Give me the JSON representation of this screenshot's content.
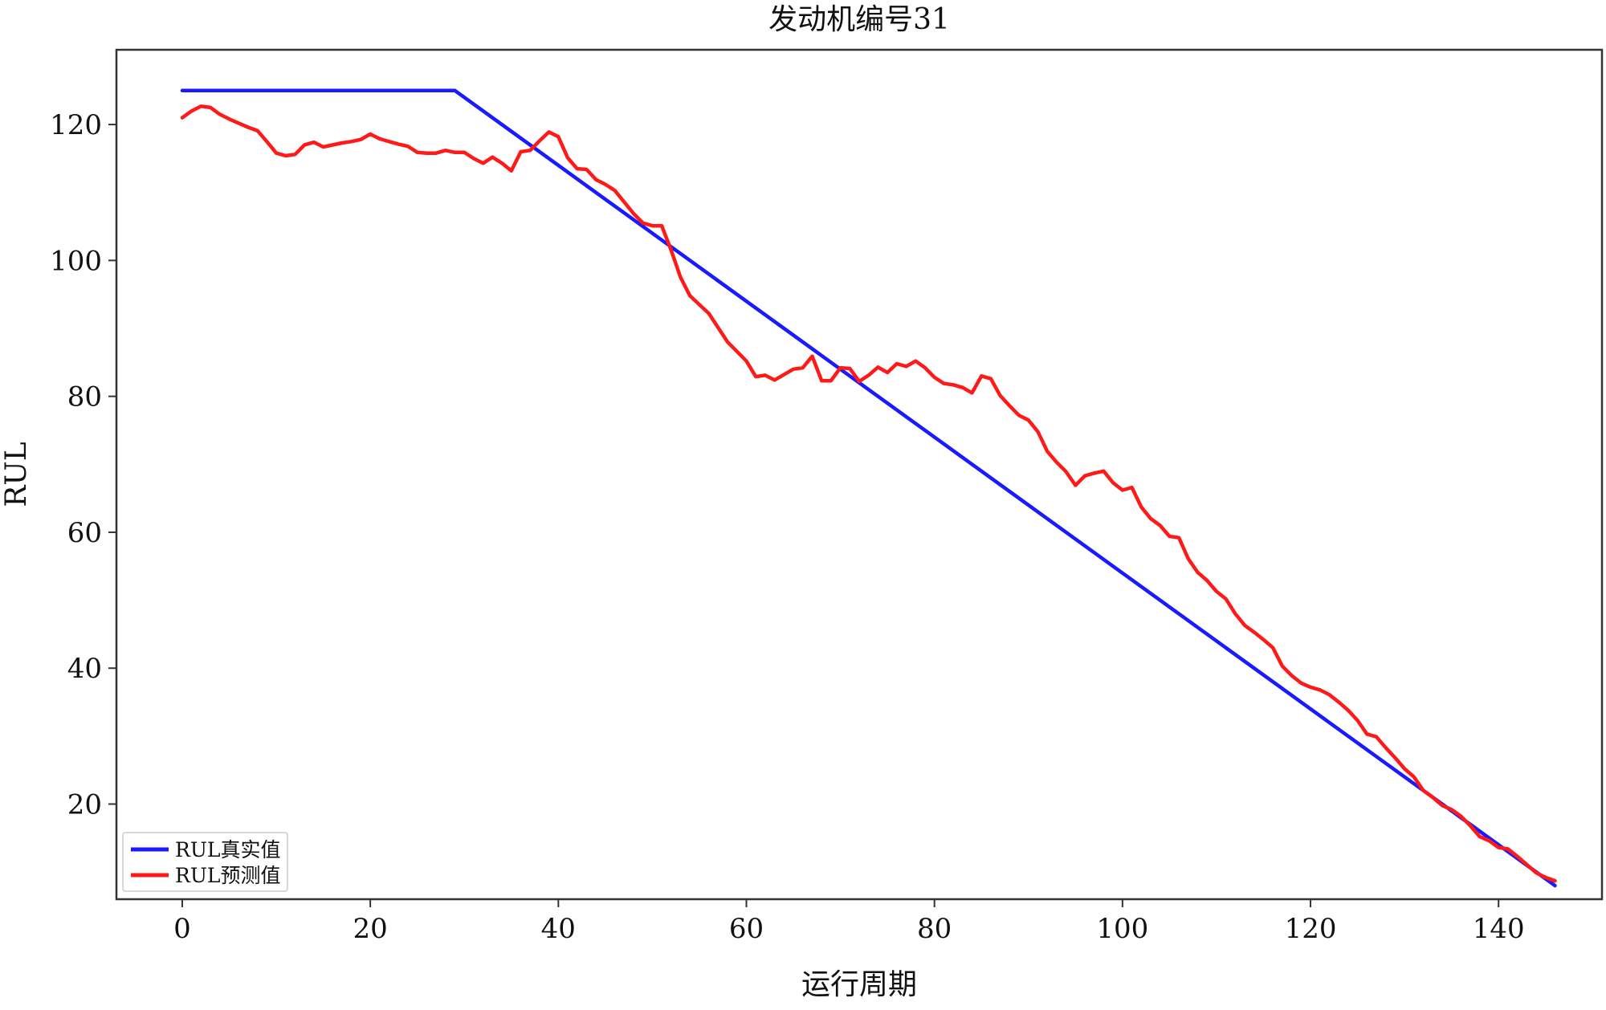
{
  "chart_data": {
    "type": "line",
    "title": "发动机编号31",
    "xlabel": "运行周期",
    "ylabel": "RUL",
    "xlim": [
      -7,
      151
    ],
    "ylim": [
      6,
      131
    ],
    "x_ticks": [
      0,
      20,
      40,
      60,
      80,
      100,
      120,
      140
    ],
    "y_ticks": [
      20,
      40,
      60,
      80,
      100,
      120
    ],
    "grid": false,
    "legend_position": "bottom-left",
    "series": [
      {
        "name": "RUL真实值",
        "color": "#1a1aff",
        "x": [
          0,
          29,
          146
        ],
        "y": [
          125,
          125,
          8
        ]
      },
      {
        "name": "RUL预测值",
        "color": "#ff1a1a",
        "x": [
          0,
          1,
          2,
          3,
          4,
          5,
          6,
          7,
          8,
          9,
          10,
          11,
          12,
          13,
          14,
          15,
          16,
          17,
          18,
          19,
          20,
          21,
          22,
          23,
          24,
          25,
          26,
          27,
          28,
          29,
          30,
          31,
          32,
          33,
          34,
          35,
          36,
          37,
          38,
          39,
          40,
          41,
          42,
          43,
          44,
          45,
          46,
          47,
          48,
          49,
          50,
          51,
          52,
          53,
          54,
          55,
          56,
          57,
          58,
          59,
          60,
          61,
          62,
          63,
          64,
          65,
          66,
          67,
          68,
          69,
          70,
          71,
          72,
          73,
          74,
          75,
          76,
          77,
          78,
          79,
          80,
          81,
          82,
          83,
          84,
          85,
          86,
          87,
          88,
          89,
          90,
          91,
          92,
          93,
          94,
          95,
          96,
          97,
          98,
          99,
          100,
          101,
          102,
          103,
          104,
          105,
          106,
          107,
          108,
          109,
          110,
          111,
          112,
          113,
          114,
          115,
          116,
          117,
          118,
          119,
          120,
          121,
          122,
          123,
          124,
          125,
          126,
          127,
          128,
          129,
          130,
          131,
          132,
          133,
          134,
          135,
          136,
          137,
          138,
          139,
          140,
          141,
          142,
          143,
          144,
          145,
          146
        ],
        "y": [
          121,
          122,
          122.7,
          122.5,
          121.5,
          120.8,
          120.2,
          119.6,
          119.1,
          117.5,
          115.8,
          115.4,
          115.6,
          117.0,
          117.4,
          116.7,
          117.0,
          117.3,
          117.5,
          117.8,
          118.6,
          117.9,
          117.5,
          117.1,
          116.8,
          115.9,
          115.8,
          115.8,
          116.2,
          115.9,
          115.9,
          115.0,
          114.3,
          115.2,
          114.3,
          113.2,
          116.0,
          116.2,
          117.6,
          118.9,
          118.2,
          115.1,
          113.5,
          113.4,
          111.9,
          111.2,
          110.3,
          108.6,
          106.9,
          105.5,
          105.1,
          105.1,
          101.5,
          97.5,
          94.8,
          93.5,
          92.2,
          90.1,
          88.0,
          86.6,
          85.2,
          82.9,
          83.1,
          82.4,
          83.2,
          84.0,
          84.2,
          85.9,
          82.3,
          82.3,
          84.2,
          84.1,
          82.2,
          83.1,
          84.3,
          83.5,
          84.8,
          84.4,
          85.2,
          84.2,
          82.8,
          81.9,
          81.7,
          81.3,
          80.5,
          83.0,
          82.6,
          80.1,
          78.6,
          77.2,
          76.5,
          74.8,
          71.9,
          70.3,
          68.9,
          66.9,
          68.3,
          68.7,
          69.0,
          67.3,
          66.2,
          66.6,
          63.7,
          62.0,
          61.0,
          59.4,
          59.2,
          56.1,
          54.1,
          52.9,
          51.3,
          50.2,
          48.0,
          46.3,
          45.3,
          44.2,
          43.0,
          40.3,
          38.9,
          37.8,
          37.2,
          36.8,
          36.1,
          35.0,
          33.8,
          32.3,
          30.3,
          29.9,
          28.3,
          26.8,
          25.2,
          24.0,
          22.0,
          21.0,
          19.8,
          19.2,
          18.2,
          16.8,
          15.2,
          14.6,
          13.6,
          13.4,
          12.3,
          11.1,
          9.9,
          9.2,
          8.7
        ]
      }
    ]
  }
}
